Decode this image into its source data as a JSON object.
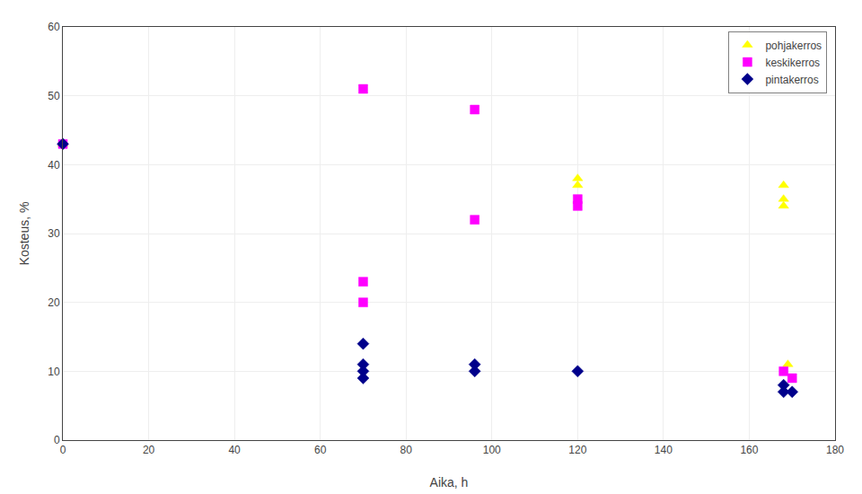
{
  "chart_data": {
    "type": "scatter",
    "xlabel": "Aika, h",
    "ylabel": "Kosteus, %",
    "series": [
      {
        "name": "pohjakerros",
        "color": "#FFFF00",
        "marker": "triangle-up",
        "x": [
          0,
          120,
          120,
          168,
          168,
          168,
          169
        ],
        "values": [
          43,
          38,
          37,
          37,
          35,
          34,
          11
        ]
      },
      {
        "name": "keskikerros",
        "color": "#FF00FF",
        "marker": "square",
        "x": [
          0,
          70,
          70,
          70,
          96,
          96,
          120,
          120,
          168,
          170
        ],
        "values": [
          43,
          51,
          23,
          20,
          48,
          32,
          35,
          34,
          10,
          9
        ]
      },
      {
        "name": "pintakerros",
        "color": "#00008B",
        "marker": "diamond",
        "x": [
          0,
          70,
          70,
          70,
          70,
          96,
          96,
          120,
          168,
          168,
          170
        ],
        "values": [
          43,
          14,
          11,
          10,
          9,
          11,
          10,
          10,
          8,
          7,
          7
        ]
      }
    ],
    "xlim": [
      0,
      180
    ],
    "ylim": [
      0,
      60
    ],
    "xticks": [
      0,
      20,
      40,
      60,
      80,
      100,
      120,
      140,
      160,
      180
    ],
    "yticks": [
      0,
      10,
      20,
      30,
      40,
      50,
      60
    ],
    "grid": true,
    "legend": "upper right"
  }
}
